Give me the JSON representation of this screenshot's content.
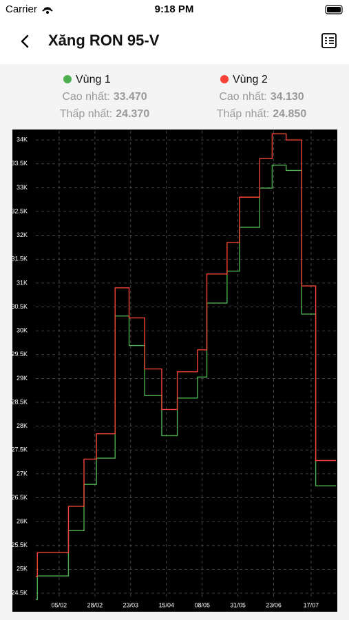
{
  "status_bar": {
    "carrier": "Carrier",
    "time": "9:18 PM"
  },
  "nav": {
    "title": "Xăng RON 95-V"
  },
  "stats": [
    {
      "high_label": "Cao nhất:",
      "high": "33.470",
      "low_label": "Thấp nhất:",
      "low": "24.370"
    },
    {
      "high_label": "Cao nhất:",
      "high": "34.130",
      "low_label": "Thấp nhất:",
      "low": "24.850"
    }
  ],
  "chart_data": {
    "type": "line",
    "step": true,
    "grid": true,
    "x": [
      21,
      22,
      42,
      52,
      60,
      72,
      81,
      91,
      102,
      112,
      125,
      131,
      144,
      152,
      165,
      173,
      182,
      192,
      201,
      214
    ],
    "series": [
      {
        "name": "Vùng 1",
        "color": "#4caf50",
        "values": [
          24370,
          24860,
          25810,
          26780,
          27330,
          30310,
          29690,
          28640,
          27800,
          28590,
          29030,
          30580,
          31250,
          32170,
          32990,
          33470,
          33360,
          30350,
          26750,
          26750
        ]
      },
      {
        "name": "Vùng 2",
        "color": "#f44336",
        "values": [
          24850,
          25350,
          26320,
          27310,
          27840,
          30900,
          30270,
          29200,
          28350,
          29140,
          29600,
          31190,
          31850,
          32800,
          33610,
          34130,
          34000,
          30940,
          27280,
          27280
        ]
      }
    ],
    "xlim": [
      21,
      214
    ],
    "xticks": [
      {
        "value": 36,
        "label": "05/02"
      },
      {
        "value": 59,
        "label": "28/02"
      },
      {
        "value": 82,
        "label": "23/03"
      },
      {
        "value": 105,
        "label": "15/04"
      },
      {
        "value": 128,
        "label": "08/05"
      },
      {
        "value": 151,
        "label": "31/05"
      },
      {
        "value": 174,
        "label": "23/06"
      },
      {
        "value": 198,
        "label": "17/07"
      }
    ],
    "ylim": [
      24370,
      34190
    ],
    "yticks": [
      {
        "value": 24500,
        "label": "24.5K"
      },
      {
        "value": 25000,
        "label": "25K"
      },
      {
        "value": 25500,
        "label": "25.5K"
      },
      {
        "value": 26000,
        "label": "26K"
      },
      {
        "value": 26500,
        "label": "26.5K"
      },
      {
        "value": 27000,
        "label": "27K"
      },
      {
        "value": 27500,
        "label": "27.5K"
      },
      {
        "value": 28000,
        "label": "28K"
      },
      {
        "value": 28500,
        "label": "28.5K"
      },
      {
        "value": 29000,
        "label": "29K"
      },
      {
        "value": 29500,
        "label": "29.5K"
      },
      {
        "value": 30000,
        "label": "30K"
      },
      {
        "value": 30500,
        "label": "30.5K"
      },
      {
        "value": 31000,
        "label": "31K"
      },
      {
        "value": 31500,
        "label": "31.5K"
      },
      {
        "value": 32000,
        "label": "32K"
      },
      {
        "value": 32500,
        "label": "32.5K"
      },
      {
        "value": 33000,
        "label": "33K"
      },
      {
        "value": 33500,
        "label": "33.5K"
      },
      {
        "value": 34000,
        "label": "34K"
      }
    ]
  }
}
